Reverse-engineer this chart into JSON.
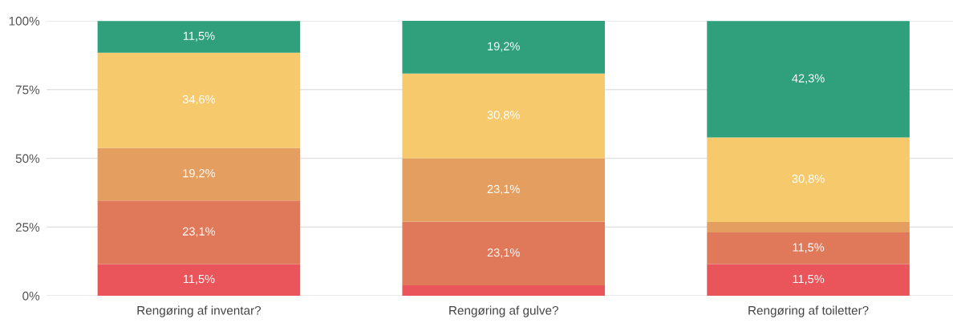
{
  "chart_data": {
    "type": "bar",
    "stacked": true,
    "categories": [
      "Rengøring af inventar?",
      "Rengøring af gulve?",
      "Rengøring af toiletter?"
    ],
    "series": [
      {
        "color": "#e9555a",
        "values": [
          11.5,
          3.8,
          11.5
        ],
        "value_labels": [
          "11,5%",
          null,
          "11,5%"
        ]
      },
      {
        "color": "#e0785a",
        "values": [
          23.1,
          23.1,
          11.5
        ],
        "value_labels": [
          "23,1%",
          "23,1%",
          "11,5%"
        ]
      },
      {
        "color": "#e49e5f",
        "values": [
          19.2,
          23.1,
          3.8
        ],
        "value_labels": [
          "19,2%",
          "23,1%",
          null
        ]
      },
      {
        "color": "#f6c96d",
        "values": [
          34.6,
          30.8,
          30.8
        ],
        "value_labels": [
          "34,6%",
          "30,8%",
          "30,8%"
        ]
      },
      {
        "color": "#2f9f7c",
        "values": [
          11.5,
          19.2,
          42.3
        ],
        "value_labels": [
          "11,5%",
          "19,2%",
          "42,3%"
        ]
      }
    ],
    "ylim": [
      0,
      100
    ],
    "yticks": [
      {
        "value": 0,
        "label": "0%"
      },
      {
        "value": 25,
        "label": "25%"
      },
      {
        "value": 50,
        "label": "50%"
      },
      {
        "value": 75,
        "label": "75%"
      },
      {
        "value": 100,
        "label": "100%"
      }
    ],
    "grid": "y",
    "legend": false
  }
}
